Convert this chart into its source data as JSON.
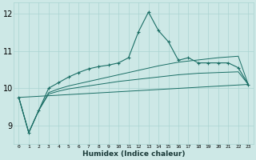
{
  "xlabel": "Humidex (Indice chaleur)",
  "bg_color": "#cde8e6",
  "grid_color": "#aad4d1",
  "line_color": "#1a6e65",
  "x_ticks": [
    0,
    1,
    2,
    3,
    4,
    5,
    6,
    7,
    8,
    9,
    10,
    11,
    12,
    13,
    14,
    15,
    16,
    17,
    18,
    19,
    20,
    21,
    22,
    23
  ],
  "ylim": [
    8.5,
    12.3
  ],
  "yticks": [
    9,
    10,
    11,
    12
  ],
  "xlim": [
    -0.5,
    23.5
  ],
  "line1_x": [
    0,
    1,
    2,
    3,
    4,
    5,
    6,
    7,
    8,
    9,
    10,
    11,
    12,
    13,
    14,
    15,
    16,
    17,
    18,
    19,
    20,
    21,
    22,
    23
  ],
  "line1_y": [
    9.75,
    8.8,
    9.4,
    10.0,
    10.15,
    10.3,
    10.42,
    10.52,
    10.58,
    10.62,
    10.68,
    10.82,
    11.52,
    12.05,
    11.55,
    11.25,
    10.75,
    10.82,
    10.68,
    10.68,
    10.68,
    10.68,
    10.55,
    10.1
  ],
  "line2_x": [
    0,
    1,
    2,
    3,
    4,
    5,
    6,
    7,
    8,
    9,
    10,
    11,
    12,
    13,
    14,
    15,
    16,
    17,
    18,
    19,
    20,
    21,
    22,
    23
  ],
  "line2_y": [
    9.75,
    8.8,
    9.4,
    9.88,
    9.98,
    10.06,
    10.12,
    10.18,
    10.24,
    10.3,
    10.36,
    10.42,
    10.48,
    10.54,
    10.6,
    10.65,
    10.7,
    10.73,
    10.76,
    10.79,
    10.82,
    10.84,
    10.86,
    10.1
  ],
  "line3_x": [
    0,
    1,
    2,
    3,
    4,
    5,
    6,
    7,
    8,
    9,
    10,
    11,
    12,
    13,
    14,
    15,
    16,
    17,
    18,
    19,
    20,
    21,
    22,
    23
  ],
  "line3_y": [
    9.75,
    8.8,
    9.4,
    9.84,
    9.92,
    9.98,
    10.02,
    10.06,
    10.1,
    10.14,
    10.18,
    10.21,
    10.24,
    10.27,
    10.3,
    10.33,
    10.36,
    10.38,
    10.4,
    10.41,
    10.42,
    10.43,
    10.44,
    10.1
  ],
  "line4_x": [
    0,
    23
  ],
  "line4_y": [
    9.75,
    10.1
  ]
}
